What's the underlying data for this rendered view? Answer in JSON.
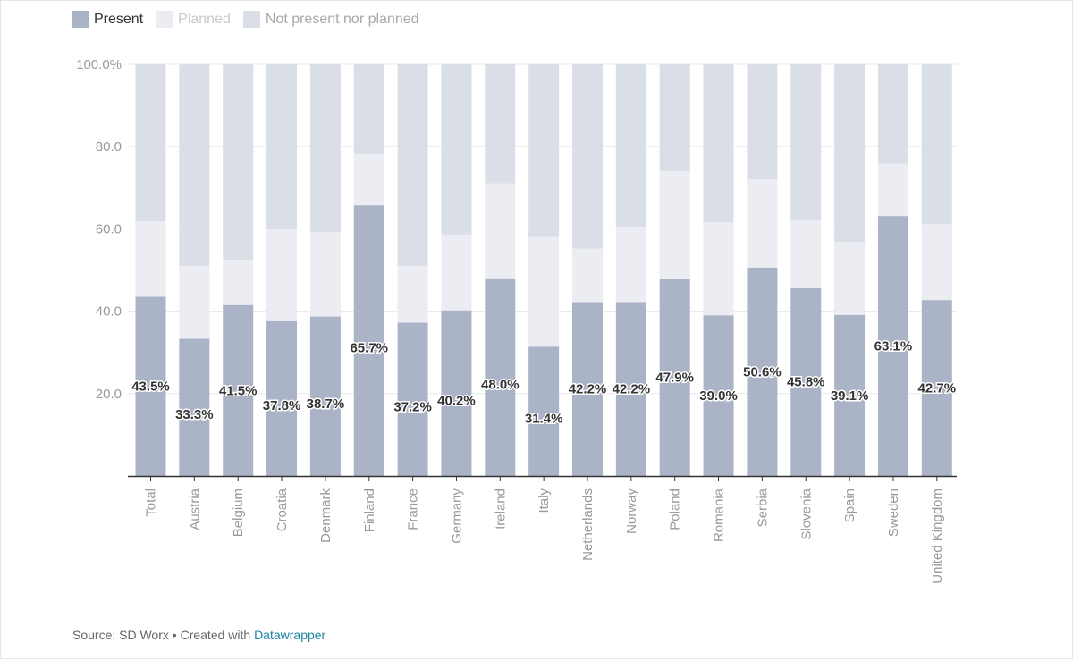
{
  "legend": {
    "present": "Present",
    "planned": "Planned",
    "not_present": "Not present nor planned"
  },
  "colors": {
    "present": "#abb3c7",
    "planned": "#ebedf2",
    "not_present": "#dadee7",
    "legend_planned_text": "#c9c9c9",
    "legend_not_present_text": "#a8a8a8",
    "axis_text": "#999999",
    "label_text": "#333333",
    "link": "#1d81a2"
  },
  "chart_data": {
    "type": "bar",
    "stacked": true,
    "orientation": "vertical",
    "categories": [
      "Total",
      "Austria",
      "Belgium",
      "Croatia",
      "Denmark",
      "Finland",
      "France",
      "Germany",
      "Ireland",
      "Italy",
      "Netherlands",
      "Norway",
      "Poland",
      "Romania",
      "Serbia",
      "Slovenia",
      "Spain",
      "Sweden",
      "United Kingdom"
    ],
    "series": [
      {
        "name": "Present",
        "values": [
          43.5,
          33.3,
          41.5,
          37.8,
          38.7,
          65.7,
          37.2,
          40.2,
          48.0,
          31.4,
          42.2,
          42.2,
          47.9,
          39.0,
          50.6,
          45.8,
          39.1,
          63.1,
          42.7
        ]
      },
      {
        "name": "Planned",
        "values": [
          18.5,
          17.7,
          11.0,
          22.2,
          20.5,
          12.6,
          13.8,
          18.4,
          23.0,
          26.8,
          13.0,
          18.3,
          26.3,
          22.6,
          21.4,
          16.4,
          17.7,
          12.7,
          18.5
        ]
      },
      {
        "name": "Not present nor planned",
        "values": [
          38.0,
          49.0,
          47.5,
          40.0,
          40.8,
          21.7,
          49.0,
          41.4,
          29.0,
          41.8,
          44.8,
          39.5,
          25.8,
          38.4,
          28.0,
          37.8,
          43.2,
          24.2,
          38.8
        ]
      }
    ],
    "data_labels": [
      "43.5%",
      "33.3%",
      "41.5%",
      "37.8%",
      "38.7%",
      "65.7%",
      "37.2%",
      "40.2%",
      "48.0%",
      "31.4%",
      "42.2%",
      "42.2%",
      "47.9%",
      "39.0%",
      "50.6%",
      "45.8%",
      "39.1%",
      "63.1%",
      "42.7%"
    ],
    "label_offsets": [
      0,
      1,
      0,
      1,
      1,
      1,
      1,
      1,
      1,
      1,
      0,
      0,
      0,
      0,
      0,
      0,
      0,
      0,
      0
    ],
    "ylim": [
      0,
      100
    ],
    "yticks": [
      {
        "value": 20,
        "label": "20.0"
      },
      {
        "value": 40,
        "label": "40.0"
      },
      {
        "value": 60,
        "label": "60.0"
      },
      {
        "value": 80,
        "label": "80.0"
      },
      {
        "value": 100,
        "label": "100.0%"
      }
    ],
    "title": "",
    "xlabel": "",
    "ylabel": "",
    "grid": true
  },
  "footer": {
    "source": "Source: SD Worx",
    "separator": " • ",
    "created_with": "Created with ",
    "tool": "Datawrapper"
  }
}
